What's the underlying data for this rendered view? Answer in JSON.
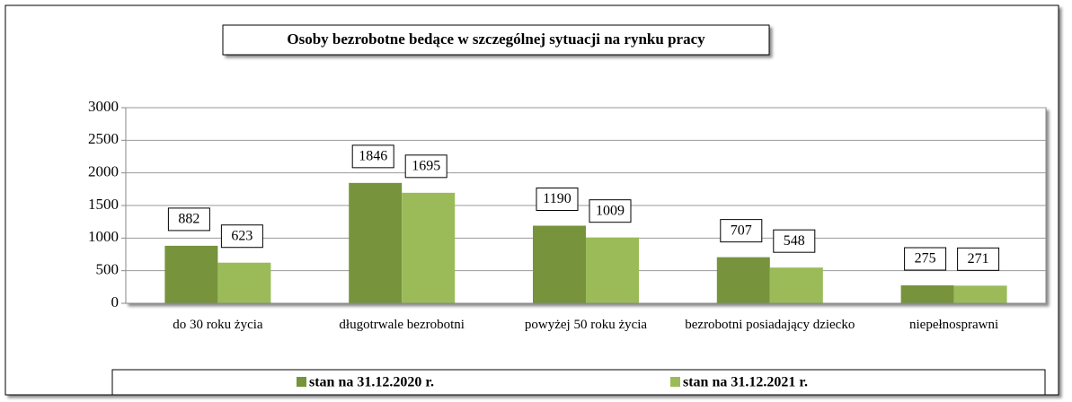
{
  "chart_data": {
    "type": "bar",
    "title": "Osoby bezrobotne bedące w szczególnej sytuacji na rynku pracy",
    "categories": [
      "do 30 roku życia",
      "długotrwale bezrobotni",
      "powyżej 50 roku życia",
      "bezrobotni posiadający dziecko",
      "niepełnosprawni"
    ],
    "series": [
      {
        "name": "stan na 31.12.2020 r.",
        "color": "#77933c",
        "values": [
          882,
          1846,
          1190,
          707,
          275
        ]
      },
      {
        "name": "stan na 31.12.2021 r.",
        "color": "#9bbb59",
        "values": [
          623,
          1695,
          1009,
          548,
          271
        ]
      }
    ],
    "ylim": [
      0,
      3000
    ],
    "yticks": [
      0,
      500,
      1000,
      1500,
      2000,
      2500,
      3000
    ],
    "grid": true,
    "legend": "bottom"
  }
}
